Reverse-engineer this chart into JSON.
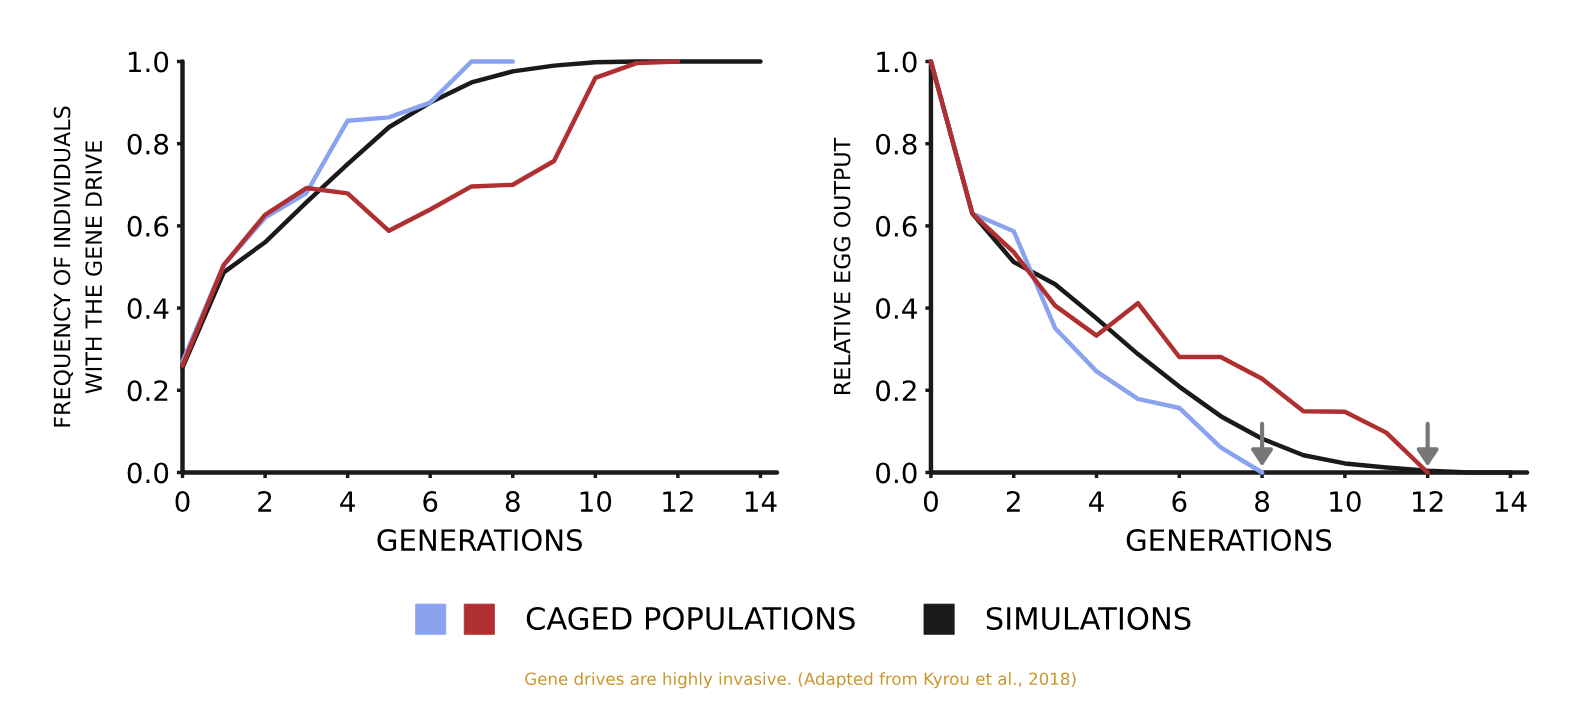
{
  "chart_data": [
    {
      "type": "line",
      "xlabel": "GENERATIONS",
      "ylabel": "FREQUENCY OF INDIVIDUALS\nWITH THE GENE DRIVE",
      "xlim": [
        0,
        14.4
      ],
      "xticks": [
        0,
        2,
        4,
        6,
        8,
        10,
        12,
        14
      ],
      "ylim": [
        0,
        1.0
      ],
      "yticks": [
        {
          "value": 0,
          "label": "0.0"
        },
        {
          "value": 0.2,
          "label": "0.2"
        },
        {
          "value": 0.4,
          "label": "0.4"
        },
        {
          "value": 0.6,
          "label": "0.6"
        },
        {
          "value": 0.8,
          "label": "0.8"
        },
        {
          "value": 1.0,
          "label": "1.0"
        }
      ],
      "legend": "bottom",
      "series": [
        {
          "name": "SIMULATIONS",
          "color": "#1a1a1a",
          "x": [
            0,
            1,
            2,
            3,
            4,
            5,
            6,
            7,
            8,
            9,
            10,
            11,
            12,
            13,
            14
          ],
          "values": [
            0.255,
            0.487,
            0.56,
            0.657,
            0.75,
            0.84,
            0.9,
            0.949,
            0.976,
            0.99,
            0.998,
            1.0,
            1.0,
            1.0,
            1.0
          ]
        },
        {
          "color": "#8aa3f0",
          "x": [
            0,
            1,
            2,
            3,
            4,
            5,
            6,
            7,
            8
          ],
          "values": [
            0.27,
            0.505,
            0.62,
            0.68,
            0.856,
            0.864,
            0.9,
            1.0,
            1.0
          ]
        },
        {
          "name": "CAGED POPULATIONS",
          "color": "#b03032",
          "x": [
            0,
            1,
            2,
            3,
            4,
            5,
            6,
            7,
            8,
            9,
            10,
            11,
            12
          ],
          "values": [
            0.26,
            0.505,
            0.627,
            0.692,
            0.679,
            0.588,
            0.64,
            0.696,
            0.7,
            0.758,
            0.96,
            0.996,
            1.0
          ]
        }
      ],
      "annotations": [
        "Gene drives are highly invasive. (Adapted from Kyrou et al., 2018)"
      ]
    },
    {
      "type": "line",
      "xlabel": "GENERATIONS",
      "ylabel": "RELATIVE EGG OUTPUT",
      "xlim": [
        0,
        14.4
      ],
      "xticks": [
        0,
        2,
        4,
        6,
        8,
        10,
        12,
        14
      ],
      "ylim": [
        0,
        1.0
      ],
      "yticks": [
        {
          "value": 0,
          "label": "0.0"
        },
        {
          "value": 0.2,
          "label": "0.2"
        },
        {
          "value": 0.4,
          "label": "0.4"
        },
        {
          "value": 0.6,
          "label": "0.6"
        },
        {
          "value": 0.8,
          "label": "0.8"
        },
        {
          "value": 1.0,
          "label": "1.0"
        }
      ],
      "legend": "bottom",
      "series": [
        {
          "name": "SIMULATIONS",
          "color": "#1a1a1a",
          "x": [
            0,
            1,
            2,
            3,
            4,
            5,
            6,
            7,
            8,
            9,
            10,
            11,
            12,
            13,
            14
          ],
          "values": [
            1.0,
            0.63,
            0.512,
            0.458,
            0.375,
            0.288,
            0.209,
            0.137,
            0.082,
            0.042,
            0.022,
            0.012,
            0.004,
            0.0,
            0.0
          ]
        },
        {
          "color": "#8aa3f0",
          "x": [
            0,
            1,
            2,
            3,
            4,
            5,
            6,
            7,
            8
          ],
          "values": [
            1.0,
            0.63,
            0.587,
            0.351,
            0.246,
            0.179,
            0.157,
            0.061,
            0.0
          ]
        },
        {
          "name": "CAGED POPULATIONS",
          "color": "#b03032",
          "x": [
            0,
            1,
            2,
            3,
            4,
            5,
            6,
            7,
            8,
            9,
            10,
            11,
            12
          ],
          "values": [
            1.0,
            0.63,
            0.536,
            0.406,
            0.333,
            0.412,
            0.281,
            0.281,
            0.228,
            0.149,
            0.148,
            0.097,
            0.0
          ]
        }
      ]
    }
  ]
}
